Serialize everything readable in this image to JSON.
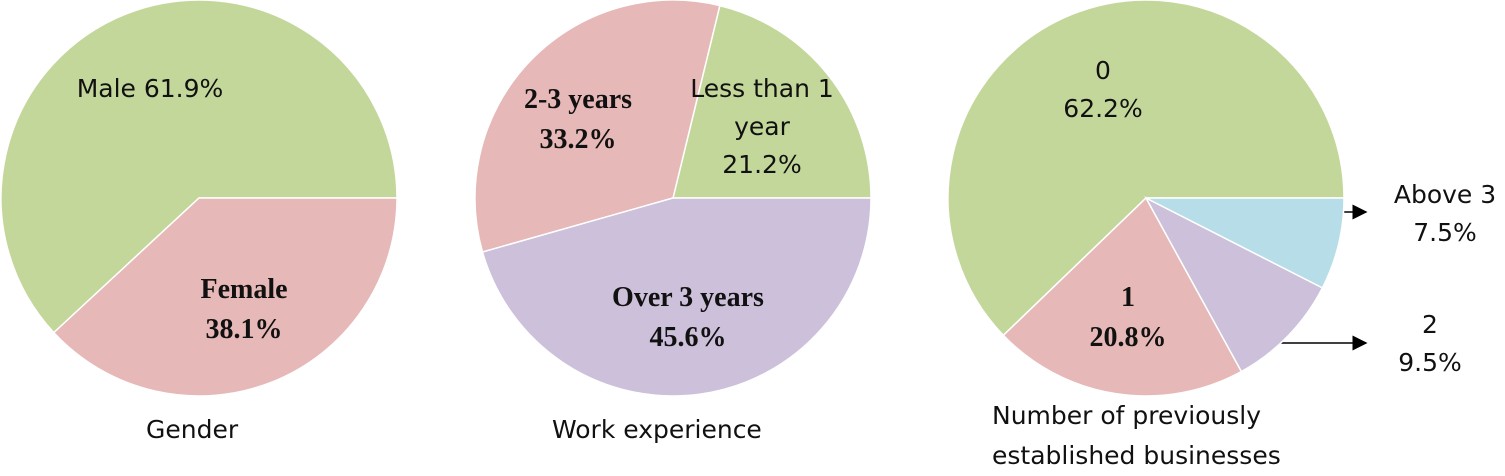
{
  "chart_data": [
    {
      "type": "pie",
      "title": "Gender",
      "categories": [
        "Male",
        "Female"
      ],
      "values": [
        61.9,
        38.1
      ],
      "value_labels": [
        "61.9%",
        "38.1%"
      ],
      "colors": [
        "#c4d79b",
        "#e6b8b7"
      ]
    },
    {
      "type": "pie",
      "title": "Work experience",
      "categories": [
        "Less than 1 year",
        "2-3 years",
        "Over 3 years"
      ],
      "values": [
        21.2,
        33.2,
        45.6
      ],
      "value_labels": [
        "21.2%",
        "33.2%",
        "45.6%"
      ],
      "colors": [
        "#c4d79b",
        "#e6b8b7",
        "#ccc0da"
      ]
    },
    {
      "type": "pie",
      "title": "Number of previously established businesses",
      "categories": [
        "0",
        "1",
        "2",
        "Above 3"
      ],
      "values": [
        62.2,
        20.8,
        9.5,
        7.5
      ],
      "value_labels": [
        "62.2%",
        "20.8%",
        "9.5%",
        "7.5%"
      ],
      "colors": [
        "#c4d79b",
        "#e6b8b7",
        "#ccc0da",
        "#b7dee8"
      ]
    }
  ]
}
